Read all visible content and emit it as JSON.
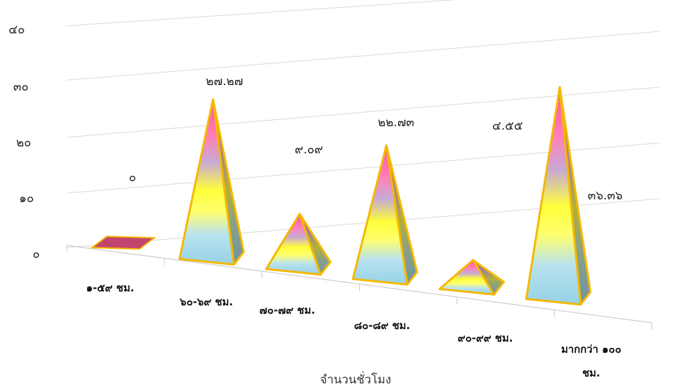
{
  "chart_data": {
    "type": "bar",
    "shape": "pyramid-3d",
    "xlabel": "จำนวนชั่วโมง",
    "ylabel": "",
    "ylim": [
      0,
      40
    ],
    "y_ticks": [
      "๐",
      "๑๐",
      "๒๐",
      "๓๐",
      "๔๐"
    ],
    "grid": true,
    "categories": [
      [
        "๑-๕๙ ชม."
      ],
      [
        "๖๐-๖๙ ชม."
      ],
      [
        "๗๐-๗๙ ชม."
      ],
      [
        "๘๐-๘๙ ชม."
      ],
      [
        "๙๐-๙๙ ชม."
      ],
      [
        "มากกว่า ๑๐๐",
        "ชม."
      ]
    ],
    "values": [
      0,
      27.27,
      9.09,
      22.73,
      4.55,
      36.36
    ],
    "value_labels": [
      "๐",
      "๒๗.๒๗",
      "๙.๐๙",
      "๒๒.๗๓",
      "๔.๕๕",
      "๓๖.๓๖"
    ],
    "colors": {
      "flat_bar": "#c2456f",
      "outline": "#f5b800",
      "gradient": [
        "#ff5fae",
        "#c7a9d6",
        "#ffff3a",
        "#ffff60",
        "#b8e2ee",
        "#96d2e6"
      ],
      "side_dark": "#7f9aa6",
      "grid": "#d9d9d9",
      "axis": "#cccccc"
    }
  }
}
